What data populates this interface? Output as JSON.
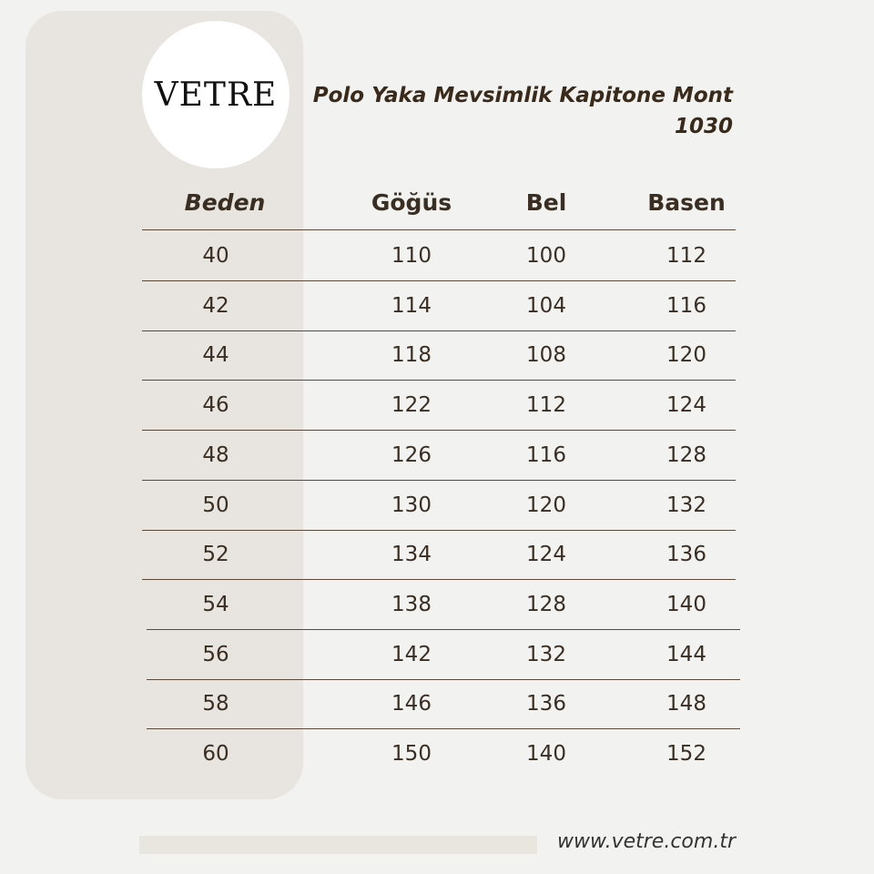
{
  "logo": "VETRE",
  "title": "Polo Yaka Mevsimlik Kapitone Mont",
  "code": "1030",
  "table": {
    "header": [
      "Beden",
      "Göğüs",
      "Bel",
      "Basen"
    ],
    "rows": [
      [
        "40",
        "110",
        "100",
        "112"
      ],
      [
        "42",
        "114",
        "104",
        "116"
      ],
      [
        "44",
        "118",
        "108",
        "120"
      ],
      [
        "46",
        "122",
        "112",
        "124"
      ],
      [
        "48",
        "126",
        "116",
        "128"
      ],
      [
        "50",
        "130",
        "120",
        "132"
      ],
      [
        "52",
        "134",
        "124",
        "136"
      ],
      [
        "54",
        "138",
        "128",
        "140"
      ],
      [
        "56",
        "142",
        "132",
        "144"
      ],
      [
        "58",
        "146",
        "136",
        "148"
      ],
      [
        "60",
        "150",
        "140",
        "152"
      ]
    ]
  },
  "footer": {
    "url": "www.vetre.com.tr"
  }
}
